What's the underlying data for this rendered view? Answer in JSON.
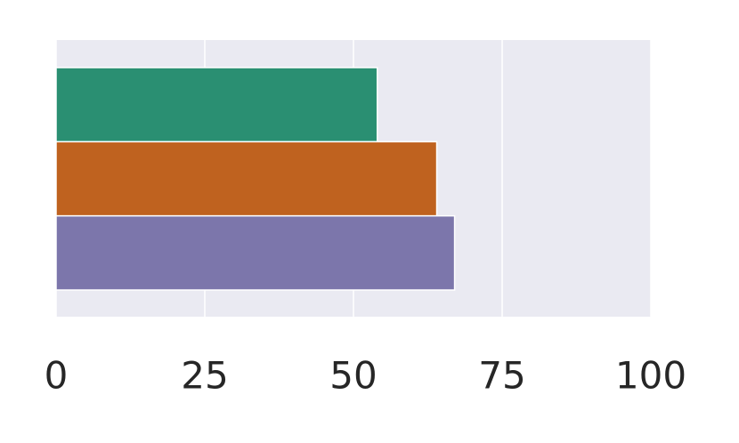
{
  "chart_data": {
    "type": "barh",
    "categories": [
      null,
      null,
      null
    ],
    "values": [
      54,
      64,
      67
    ],
    "colors": [
      "#2a8f72",
      "#bf621f",
      "#7c76ab"
    ],
    "xlim": [
      0,
      100
    ],
    "xticks": [
      0,
      25,
      50,
      75,
      100
    ],
    "grid": true
  }
}
